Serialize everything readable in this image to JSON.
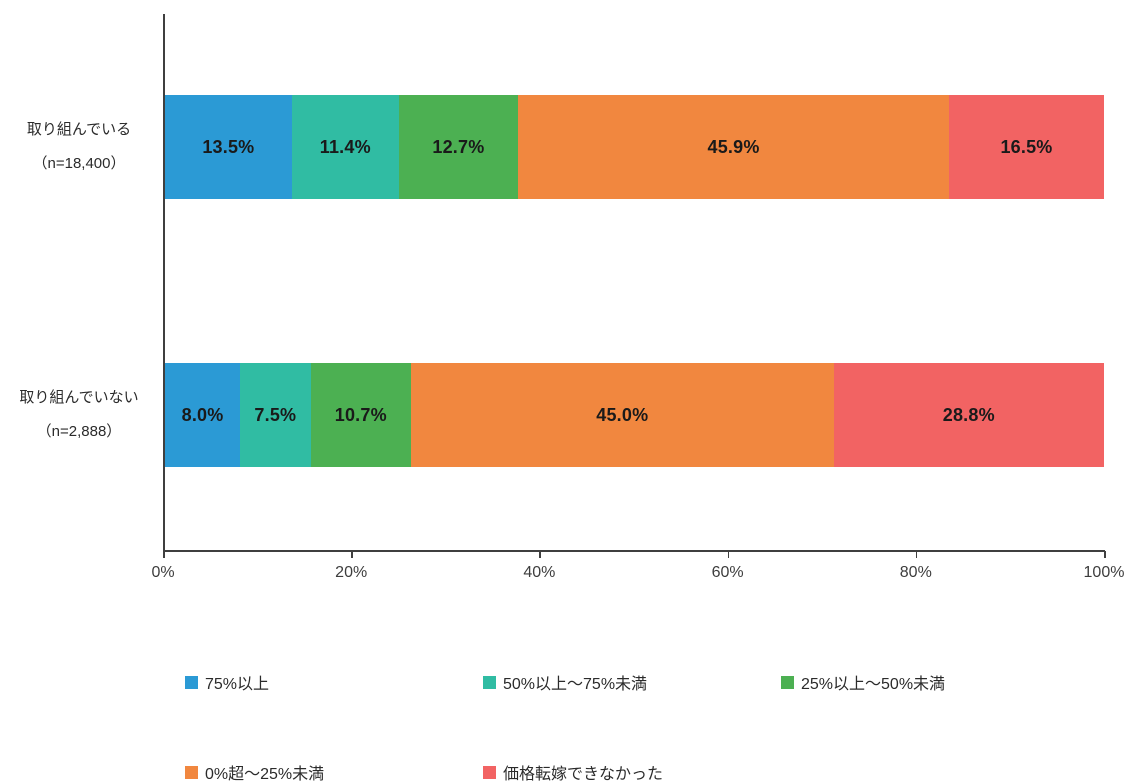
{
  "chart_data": {
    "type": "bar",
    "stacked": true,
    "orientation": "horizontal",
    "unit": "%",
    "title": "",
    "xlabel": "",
    "ylabel": "",
    "xlim": [
      0,
      100
    ],
    "x_ticks": [
      "0%",
      "20%",
      "40%",
      "60%",
      "80%",
      "100%"
    ],
    "grid": false,
    "legend_position": "bottom",
    "categories": [
      {
        "label": "取り組んでいる",
        "sub_label": "（n=18,400）"
      },
      {
        "label": "取り組んでいない",
        "sub_label": "（n=2,888）"
      }
    ],
    "series": [
      {
        "name": "75%以上",
        "color": "#2B9AD5",
        "values": [
          13.5,
          8.0
        ]
      },
      {
        "name": "50%以上～75%未満",
        "color": "#30BCA3",
        "values": [
          11.4,
          7.5
        ]
      },
      {
        "name": "25%以上～50%未満",
        "color": "#4CB052",
        "values": [
          12.7,
          10.7
        ]
      },
      {
        "name": "0%超～25%未満",
        "color": "#F1873F",
        "values": [
          45.9,
          45.0
        ]
      },
      {
        "name": "価格転嫁できなかった",
        "color": "#F26363",
        "values": [
          16.5,
          28.8
        ]
      }
    ],
    "value_labels": [
      [
        "13.5%",
        "11.4%",
        "12.7%",
        "45.9%",
        "16.5%"
      ],
      [
        "8.0%",
        "7.5%",
        "10.7%",
        "45.0%",
        "28.8%"
      ]
    ],
    "legend_rows": [
      [
        0,
        1,
        2
      ],
      [
        3,
        4
      ]
    ],
    "axis_color": "#3f3f3f"
  }
}
